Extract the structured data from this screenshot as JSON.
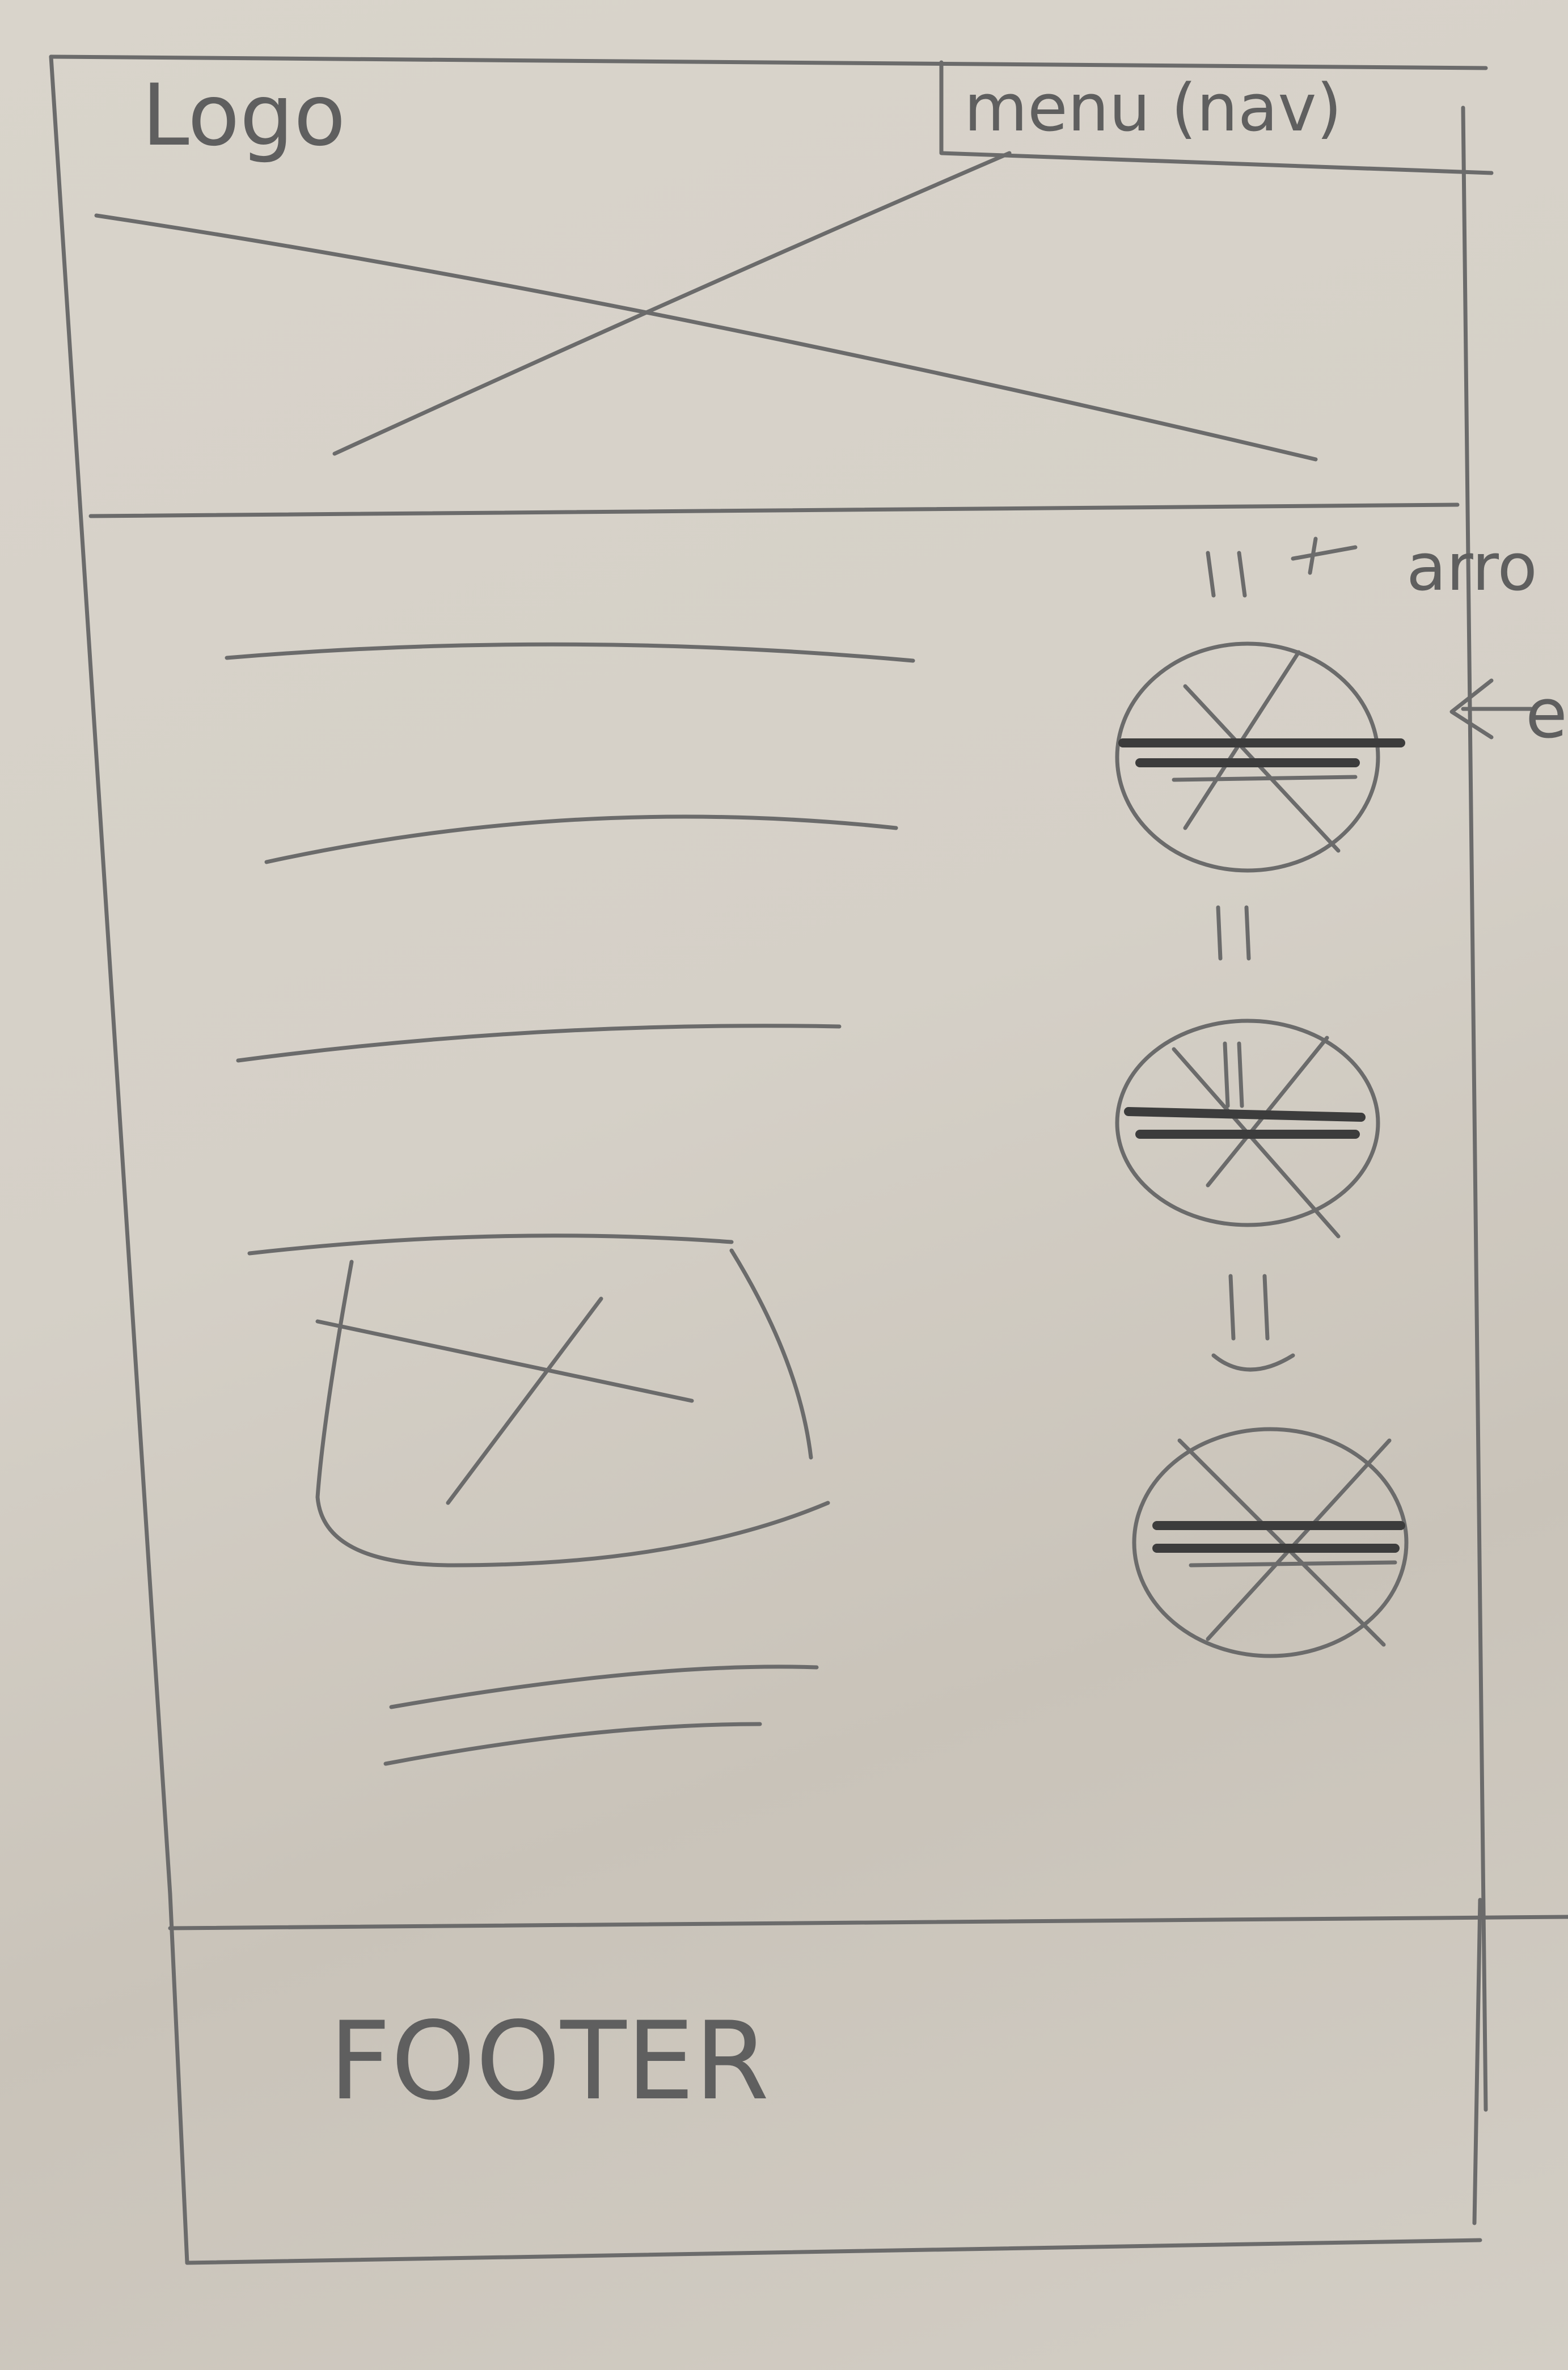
{
  "header": {
    "logo_text": "Logo",
    "menu_text": "menu (nav)"
  },
  "annotations": {
    "arrow_note": "arro",
    "side_note": "e"
  },
  "footer": {
    "label": "FOOTER"
  }
}
